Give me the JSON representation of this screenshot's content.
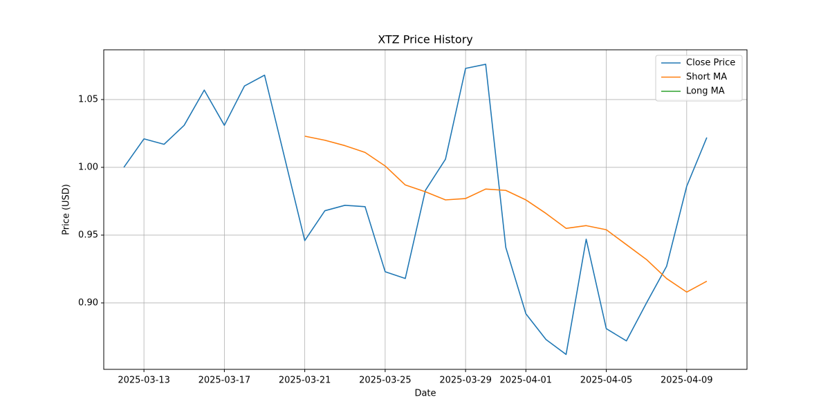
{
  "chart_data": {
    "type": "line",
    "title": "XTZ Price History",
    "x_label": "Date",
    "y_label": "Price (USD)",
    "x": [
      "2025-03-12",
      "2025-03-13",
      "2025-03-14",
      "2025-03-15",
      "2025-03-16",
      "2025-03-17",
      "2025-03-18",
      "2025-03-19",
      "2025-03-20",
      "2025-03-21",
      "2025-03-22",
      "2025-03-23",
      "2025-03-24",
      "2025-03-25",
      "2025-03-26",
      "2025-03-27",
      "2025-03-28",
      "2025-03-29",
      "2025-03-30",
      "2025-03-31",
      "2025-04-01",
      "2025-04-02",
      "2025-04-03",
      "2025-04-04",
      "2025-04-05",
      "2025-04-06",
      "2025-04-07",
      "2025-04-08",
      "2025-04-09",
      "2025-04-10"
    ],
    "series": [
      {
        "name": "Close Price",
        "color": "#1f77b4",
        "values": [
          1.0,
          1.021,
          1.017,
          1.031,
          1.057,
          1.031,
          1.06,
          1.068,
          1.007,
          0.946,
          0.968,
          0.972,
          0.971,
          0.923,
          0.918,
          0.983,
          1.006,
          1.073,
          1.076,
          0.941,
          0.892,
          0.873,
          0.862,
          0.947,
          0.881,
          0.872,
          0.9,
          0.927,
          0.986,
          1.022
        ]
      },
      {
        "name": "Short MA",
        "color": "#ff7f0e",
        "values": [
          null,
          null,
          null,
          null,
          null,
          null,
          null,
          null,
          null,
          1.023,
          1.02,
          1.016,
          1.011,
          1.001,
          0.987,
          0.982,
          0.976,
          0.977,
          0.984,
          0.983,
          0.976,
          0.966,
          0.955,
          0.957,
          0.954,
          0.943,
          0.932,
          0.918,
          0.908,
          0.916
        ]
      },
      {
        "name": "Long MA",
        "color": "#2ca02c",
        "values": [
          null,
          null,
          null,
          null,
          null,
          null,
          null,
          null,
          null,
          null,
          null,
          null,
          null,
          null,
          null,
          null,
          null,
          null,
          null,
          null,
          null,
          null,
          null,
          null,
          null,
          null,
          null,
          null,
          null,
          null
        ]
      }
    ],
    "xlim": [
      "2025-03-11",
      "2025-04-12"
    ],
    "xticks": [
      "2025-03-13",
      "2025-03-17",
      "2025-03-21",
      "2025-03-25",
      "2025-03-29",
      "2025-04-01",
      "2025-04-05",
      "2025-04-09"
    ],
    "ylim": [
      0.851,
      1.0867
    ],
    "yticks": [
      {
        "value": 0.9,
        "label": "0.90"
      },
      {
        "value": 0.95,
        "label": "0.95"
      },
      {
        "value": 1.0,
        "label": "1.00"
      },
      {
        "value": 1.05,
        "label": "1.05"
      }
    ],
    "grid": true,
    "legend": "upper right"
  }
}
